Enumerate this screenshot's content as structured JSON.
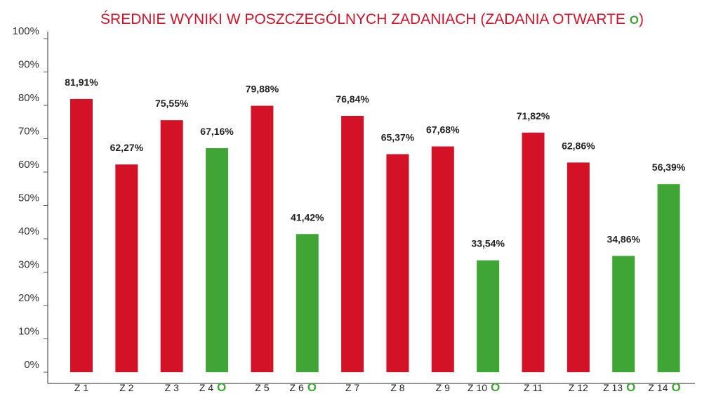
{
  "chart_data": {
    "type": "bar",
    "title": "ŚREDNIE WYNIKI W POSZCZEGÓLNYCH ZADANIACH (ZADANIA OTWARTE ",
    "title_marker": "O",
    "xlabel": "",
    "ylabel": "",
    "ylim": [
      0,
      100
    ],
    "yticks": [
      "0%",
      "10%",
      "20%",
      "30%",
      "40%",
      "50%",
      "60%",
      "70%",
      "80%",
      "90%",
      "100%"
    ],
    "open_marker": "O",
    "grid": false,
    "colors": {
      "closed": "#d31228",
      "open": "#3fa535",
      "title": "#d31228",
      "axis": "#555555"
    },
    "categories": [
      "Z 1",
      "Z 2",
      "Z 3",
      "Z 4",
      "Z 5",
      "Z 6",
      "Z 7",
      "Z 8",
      "Z 9",
      "Z 10",
      "Z 11",
      "Z 12",
      "Z 13",
      "Z 14"
    ],
    "open": [
      false,
      false,
      false,
      true,
      false,
      true,
      false,
      false,
      false,
      true,
      false,
      false,
      true,
      true
    ],
    "values": [
      81.91,
      62.27,
      75.55,
      67.16,
      79.88,
      41.42,
      76.84,
      65.37,
      67.68,
      33.54,
      71.82,
      62.86,
      34.86,
      56.39
    ],
    "labels": [
      "81,91%",
      "62,27%",
      "75,55%",
      "67,16%",
      "79,88%",
      "41,42%",
      "76,84%",
      "65,37%",
      "67,68%",
      "33,54%",
      "71,82%",
      "62,86%",
      "34,86%",
      "56,39%"
    ]
  }
}
